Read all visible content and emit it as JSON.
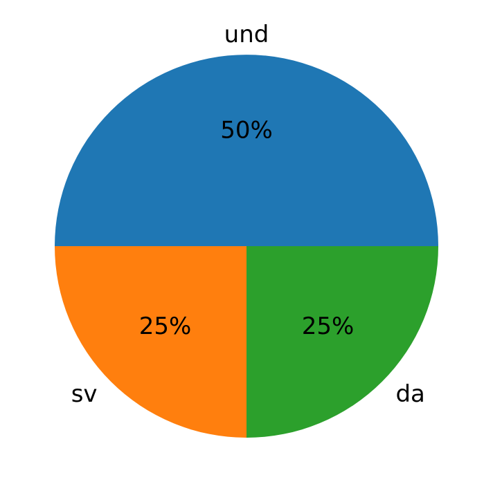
{
  "chart_data": {
    "type": "pie",
    "categories": [
      "und",
      "sv",
      "da"
    ],
    "values": [
      50,
      25,
      25
    ],
    "percent_labels": [
      "50%",
      "25%",
      "25%"
    ],
    "colors": [
      "#1f77b4",
      "#ff7f0e",
      "#2ca02c"
    ],
    "start_angle_deg": 0,
    "direction": "counterclockwise"
  }
}
